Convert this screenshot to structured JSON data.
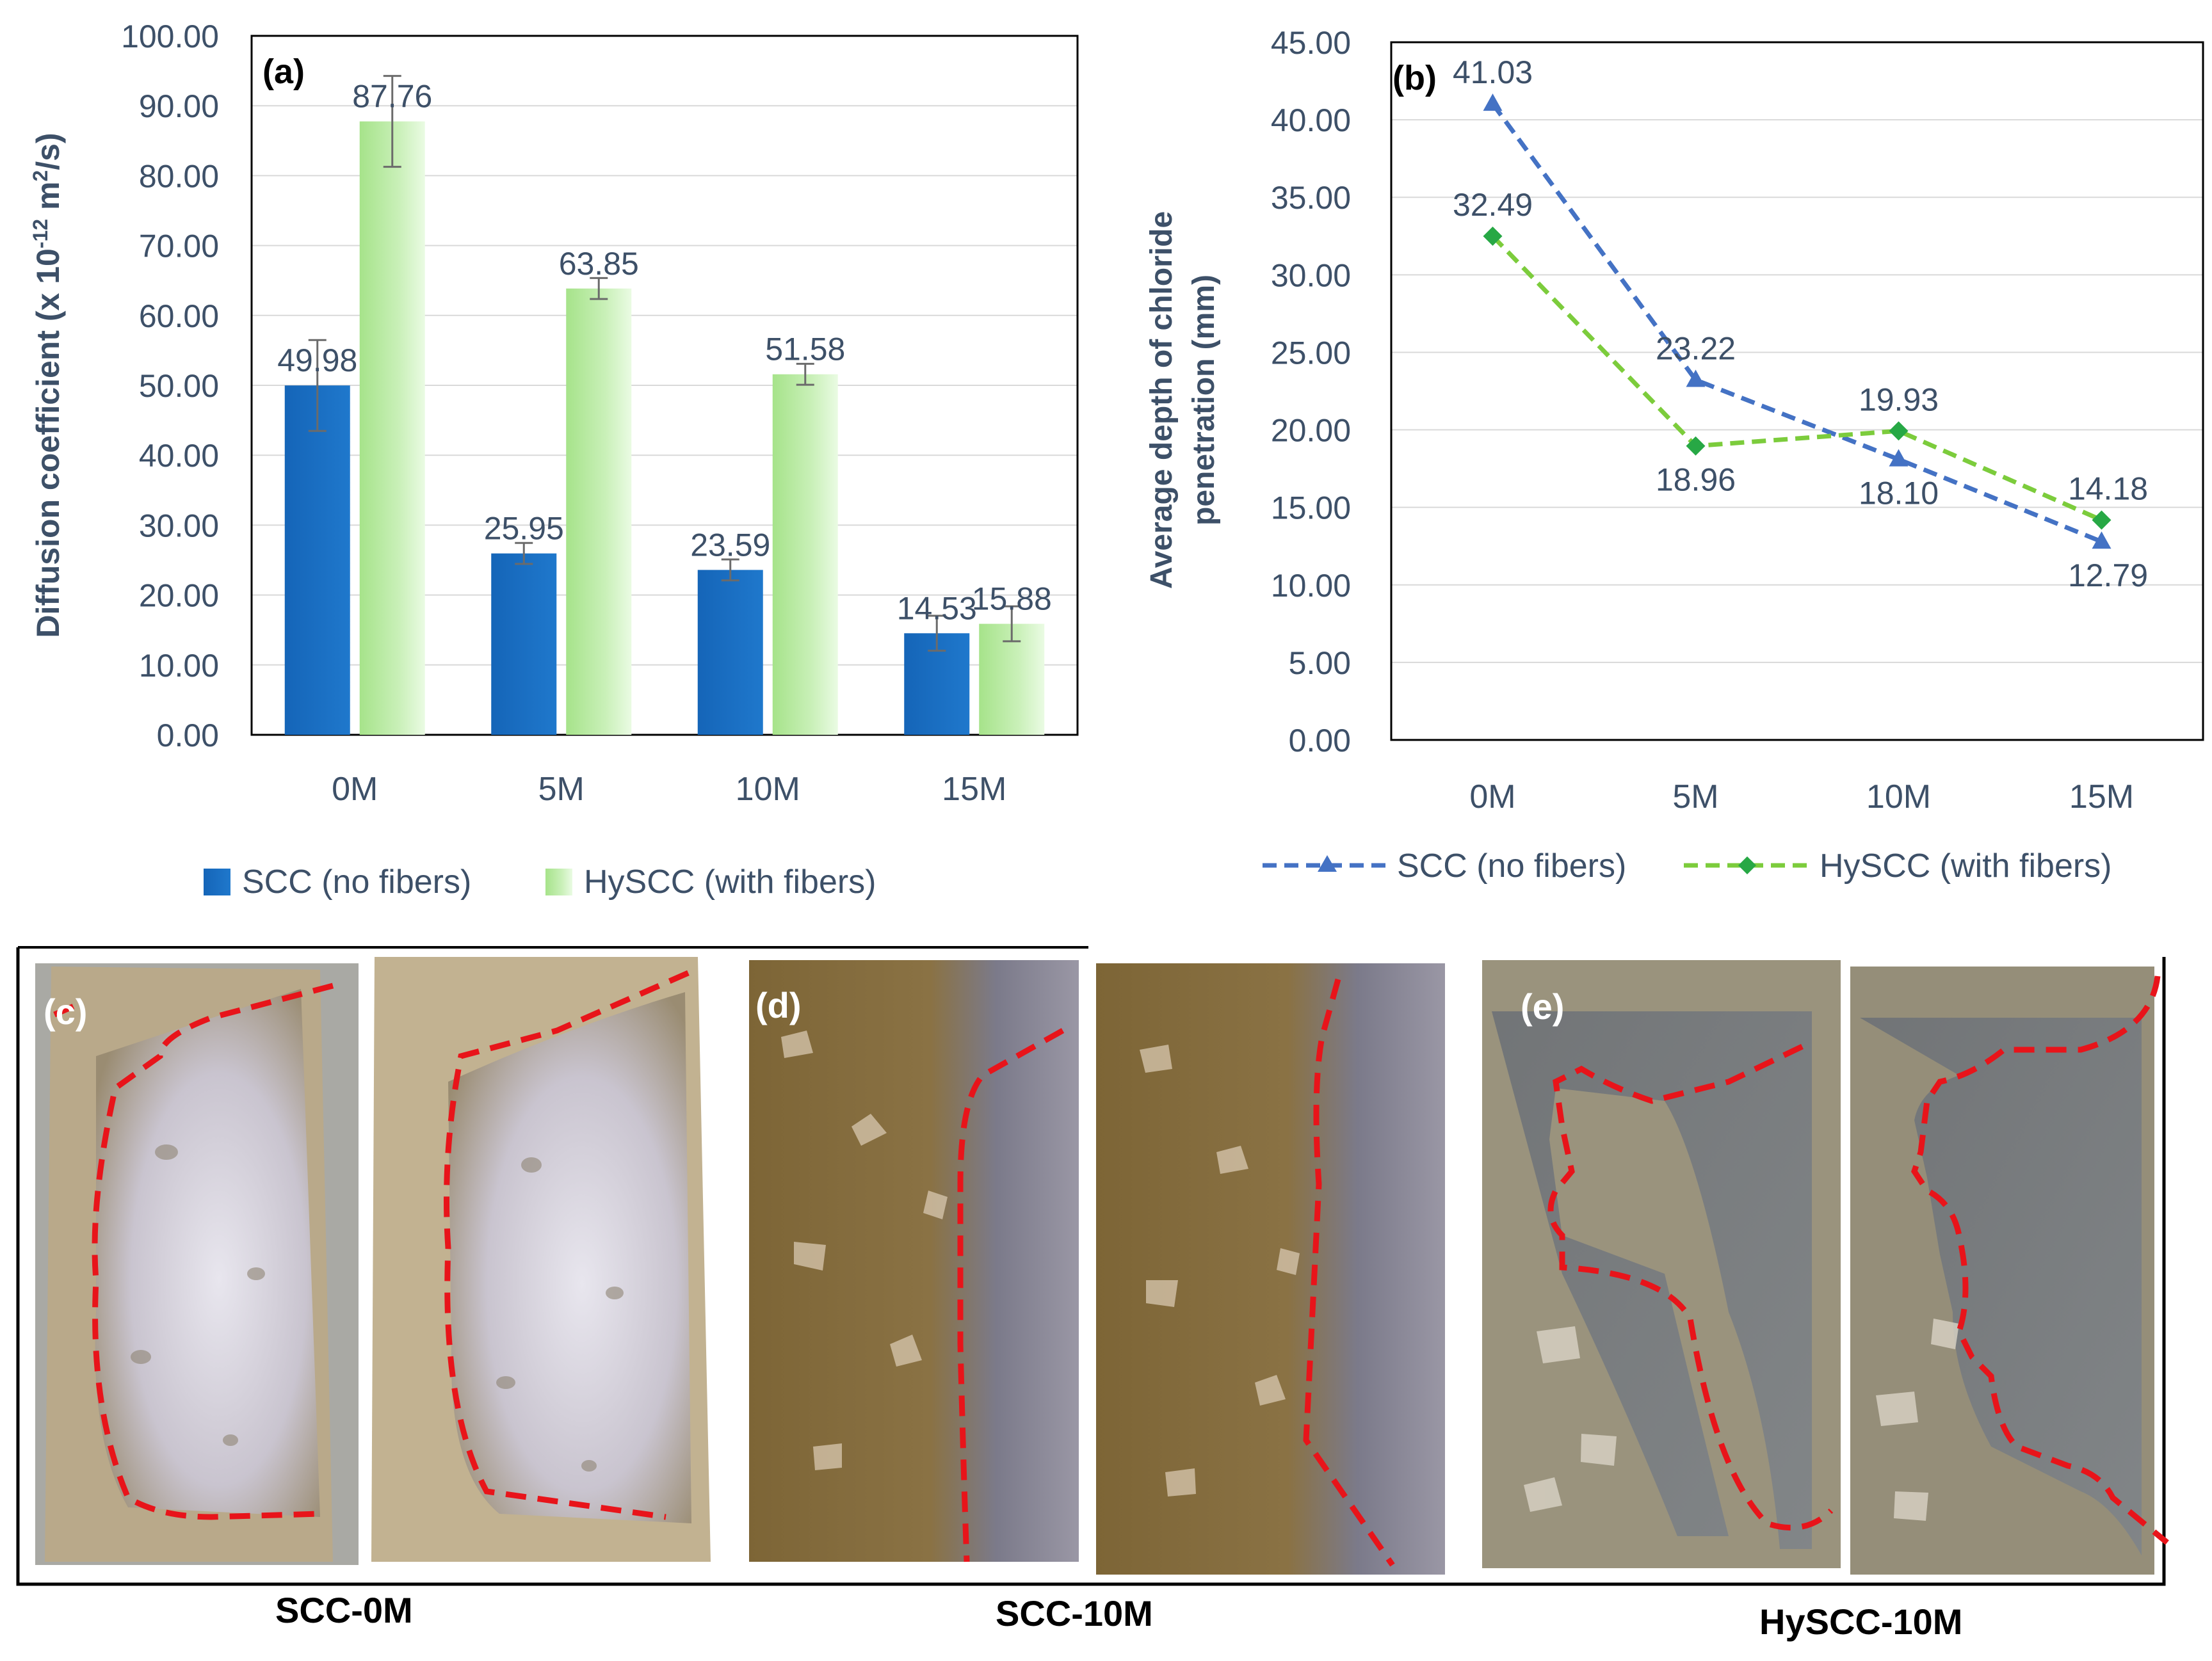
{
  "chart_data": [
    {
      "panel": "(a)",
      "type": "bar",
      "title": "",
      "ylabel": "Diffusion coefficient (x 10-12 m2/s)",
      "ylabel_parts": [
        "Diffusion coefficient (x 10",
        "-12",
        " m",
        "2",
        "/s)"
      ],
      "xlabel": "",
      "categories": [
        "0M",
        "5M",
        "10M",
        "15M"
      ],
      "ylim": [
        0,
        100
      ],
      "ytick_values": [
        0,
        10,
        20,
        30,
        40,
        50,
        60,
        70,
        80,
        90,
        100
      ],
      "ytick_labels": [
        "0.00",
        "10.00",
        "20.00",
        "30.00",
        "40.00",
        "50.00",
        "60.00",
        "70.00",
        "80.00",
        "90.00",
        "100.00"
      ],
      "grid": true,
      "legend_position": "bottom",
      "series": [
        {
          "name": "SCC (no fibers)",
          "color": "#1a6ebf",
          "values": [
            49.98,
            25.95,
            23.59,
            14.53
          ],
          "labels": [
            "49.98",
            "25.95",
            "23.59",
            "14.53"
          ],
          "errors": [
            6.5,
            1.5,
            1.5,
            2.5
          ]
        },
        {
          "name": "HySCC (with fibers)",
          "color": "#a6e38a",
          "values": [
            87.76,
            63.85,
            51.58,
            15.88
          ],
          "labels": [
            "87.76",
            "63.85",
            "51.58",
            "15.88"
          ],
          "errors": [
            6.5,
            1.5,
            1.5,
            2.5
          ]
        }
      ]
    },
    {
      "panel": "(b)",
      "type": "line",
      "title": "",
      "ylabel": "Average depth of  chloride penetration (mm)",
      "ylabel_lines": [
        "Average depth of  chloride",
        "penetration (mm)"
      ],
      "xlabel": "",
      "categories": [
        "0M",
        "5M",
        "10M",
        "15M"
      ],
      "ylim": [
        0,
        45
      ],
      "ytick_values": [
        0,
        5,
        10,
        15,
        20,
        25,
        30,
        35,
        40,
        45
      ],
      "ytick_labels": [
        "0.00",
        "5.00",
        "10.00",
        "15.00",
        "20.00",
        "25.00",
        "30.00",
        "35.00",
        "40.00",
        "45.00"
      ],
      "grid": true,
      "legend_position": "bottom",
      "series": [
        {
          "name": "SCC (no fibers)",
          "color": "#4472c4",
          "marker": "triangle",
          "values": [
            41.03,
            23.22,
            18.1,
            12.79
          ],
          "labels": [
            "41.03",
            "23.22",
            "18.10",
            "12.79"
          ],
          "label_side": [
            "above",
            "above",
            "below",
            "below"
          ]
        },
        {
          "name": "HySCC (with fibers)",
          "color": "#7ccc3c",
          "marker": "diamond",
          "values": [
            32.49,
            18.96,
            19.93,
            14.18
          ],
          "labels": [
            "32.49",
            "18.96",
            "19.93",
            "14.18"
          ],
          "label_side": [
            "above",
            "below",
            "above",
            "above"
          ]
        }
      ]
    }
  ],
  "photos": {
    "panels": [
      {
        "tag": "(c)",
        "caption": "SCC-0M"
      },
      {
        "tag": "(d)",
        "caption": "SCC-10M"
      },
      {
        "tag": "(e)",
        "caption": "HySCC-10M"
      }
    ],
    "colors": {
      "scc0m": "#b8ad9b",
      "scc10m": "#7a6338",
      "hyscc10m": "#6f7377",
      "boundary": "#e8141a"
    }
  }
}
